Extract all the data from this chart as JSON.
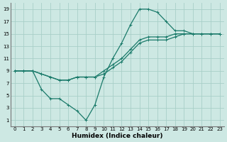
{
  "xlabel": "Humidex (Indice chaleur)",
  "bg_color": "#cde8e3",
  "grid_color": "#a8cfc8",
  "line_color": "#1a7a6a",
  "xlim": [
    -0.5,
    23.5
  ],
  "ylim": [
    0,
    20
  ],
  "xticks": [
    0,
    1,
    2,
    3,
    4,
    5,
    6,
    7,
    8,
    9,
    10,
    11,
    12,
    13,
    14,
    15,
    16,
    17,
    18,
    19,
    20,
    21,
    22,
    23
  ],
  "yticks": [
    1,
    3,
    5,
    7,
    9,
    11,
    13,
    15,
    17,
    19
  ],
  "line1_x": [
    0,
    1,
    2,
    3,
    4,
    5,
    6,
    7,
    8,
    9,
    10,
    11,
    12,
    13,
    14,
    15,
    16,
    17,
    18,
    19,
    20,
    21,
    22,
    23
  ],
  "line1_y": [
    9,
    9,
    9,
    6,
    4.5,
    4.5,
    3.5,
    2.5,
    1,
    3.5,
    8,
    11,
    13.5,
    16.5,
    19,
    19,
    18.5,
    17,
    15.5,
    15.5,
    15,
    15,
    15,
    15
  ],
  "line2_x": [
    0,
    1,
    2,
    3,
    4,
    5,
    6,
    7,
    8,
    9,
    10,
    11,
    12,
    13,
    14,
    15,
    16,
    17,
    18,
    19,
    20,
    21,
    22,
    23
  ],
  "line2_y": [
    9,
    9,
    9,
    8.5,
    8,
    7.5,
    7.5,
    8,
    8,
    8,
    8.5,
    9.5,
    10.5,
    12,
    13.5,
    14,
    14,
    14,
    14.5,
    15,
    15,
    15,
    15,
    15
  ],
  "line3_x": [
    0,
    1,
    2,
    3,
    4,
    5,
    6,
    7,
    8,
    9,
    10,
    11,
    12,
    13,
    14,
    15,
    16,
    17,
    18,
    19,
    20,
    21,
    22,
    23
  ],
  "line3_y": [
    9,
    9,
    9,
    8.5,
    8,
    7.5,
    7.5,
    8,
    8,
    8,
    9,
    10,
    11,
    12.5,
    14,
    14.5,
    14.5,
    14.5,
    15,
    15,
    15,
    15,
    15,
    15
  ],
  "marker_size": 2.5,
  "line_width": 0.9,
  "tick_fontsize": 5.0,
  "xlabel_fontsize": 6.5
}
